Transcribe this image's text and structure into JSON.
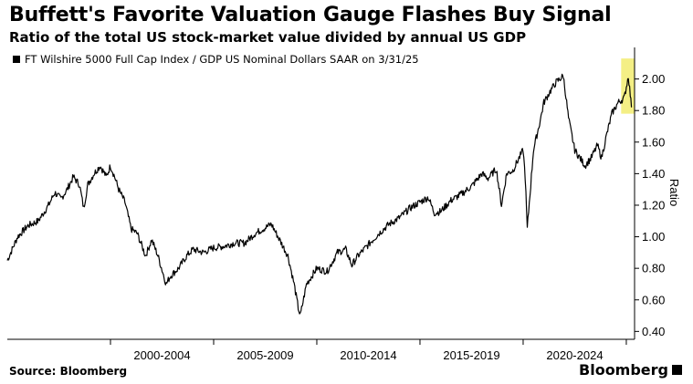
{
  "header": {
    "title": "Buffett's Favorite Valuation Gauge Flashes Buy Signal",
    "subtitle": "Ratio of the total US stock-market value divided by annual US GDP"
  },
  "footer": {
    "source": "Source: Bloomberg",
    "brand": "Bloomberg"
  },
  "colors": {
    "line": "#000000",
    "highlight": "#f4ef85",
    "grid": "#d9d9d9",
    "axis": "#000000"
  },
  "chart_data": {
    "type": "line",
    "title": "",
    "xlabel": "",
    "ylabel": "Ratio",
    "ylim": [
      0.35,
      2.2
    ],
    "xlim": [
      1995.0,
      2025.4
    ],
    "grid": false,
    "legend_position": "top-left",
    "series": [
      {
        "name": "FT Wilshire 5000 Full Cap Index / GDP US Nominal Dollars SAAR on 3/31/25",
        "x": [
          1995.0,
          1995.5,
          1996.0,
          1996.5,
          1997.0,
          1997.3,
          1997.6,
          1997.9,
          1998.2,
          1998.5,
          1998.7,
          1998.9,
          1999.2,
          1999.5,
          1999.8,
          2000.0,
          2000.2,
          2000.4,
          2000.7,
          2001.0,
          2001.3,
          2001.7,
          2002.0,
          2002.3,
          2002.7,
          2002.9,
          2003.3,
          2003.7,
          2004.0,
          2004.5,
          2005.0,
          2005.5,
          2006.0,
          2006.5,
          2007.0,
          2007.4,
          2007.8,
          2008.2,
          2008.6,
          2008.9,
          2009.1,
          2009.2,
          2009.5,
          2010.0,
          2010.5,
          2011.0,
          2011.4,
          2011.7,
          2012.0,
          2012.5,
          2013.0,
          2013.5,
          2014.0,
          2014.5,
          2015.0,
          2015.4,
          2015.7,
          2016.0,
          2016.5,
          2017.0,
          2017.5,
          2018.0,
          2018.3,
          2018.7,
          2018.95,
          2019.2,
          2019.5,
          2020.0,
          2020.1,
          2020.2,
          2020.5,
          2020.8,
          2021.0,
          2021.3,
          2021.6,
          2021.95,
          2022.2,
          2022.5,
          2022.75,
          2023.0,
          2023.3,
          2023.6,
          2023.8,
          2024.0,
          2024.3,
          2024.6,
          2024.9,
          2025.0,
          2025.1,
          2025.25
        ],
        "values": [
          0.85,
          1.0,
          1.07,
          1.1,
          1.2,
          1.28,
          1.24,
          1.3,
          1.38,
          1.33,
          1.18,
          1.33,
          1.4,
          1.45,
          1.38,
          1.45,
          1.38,
          1.3,
          1.22,
          1.05,
          1.02,
          0.88,
          0.98,
          0.88,
          0.7,
          0.75,
          0.8,
          0.88,
          0.92,
          0.9,
          0.93,
          0.94,
          0.96,
          0.96,
          1.02,
          1.05,
          1.08,
          0.98,
          0.88,
          0.7,
          0.55,
          0.5,
          0.7,
          0.8,
          0.78,
          0.9,
          0.92,
          0.82,
          0.88,
          0.95,
          1.02,
          1.08,
          1.12,
          1.18,
          1.22,
          1.25,
          1.15,
          1.16,
          1.23,
          1.27,
          1.32,
          1.4,
          1.37,
          1.43,
          1.2,
          1.4,
          1.42,
          1.55,
          1.38,
          1.05,
          1.55,
          1.72,
          1.85,
          1.92,
          1.98,
          2.02,
          1.75,
          1.55,
          1.5,
          1.45,
          1.5,
          1.58,
          1.5,
          1.62,
          1.78,
          1.85,
          1.88,
          1.95,
          2.02,
          1.82
        ],
        "color": "#000000"
      }
    ],
    "y_ticks": [
      "0.40",
      "0.60",
      "0.80",
      "1.00",
      "1.20",
      "1.40",
      "1.60",
      "1.80",
      "2.00"
    ],
    "y_tick_values": [
      0.4,
      0.6,
      0.8,
      1.0,
      1.2,
      1.4,
      1.6,
      1.8,
      2.0
    ],
    "x_tick_labels": [
      "2000-2004",
      "2005-2009",
      "2010-2014",
      "2015-2019",
      "2020-2024"
    ],
    "x_tick_centers": [
      2002.5,
      2007.5,
      2012.5,
      2017.5,
      2022.5
    ],
    "x_dividers": [
      2000,
      2005,
      2010,
      2015,
      2020,
      2025
    ],
    "highlight": {
      "x_range": [
        2024.75,
        2025.4
      ],
      "y_range": [
        1.78,
        2.13
      ]
    }
  }
}
